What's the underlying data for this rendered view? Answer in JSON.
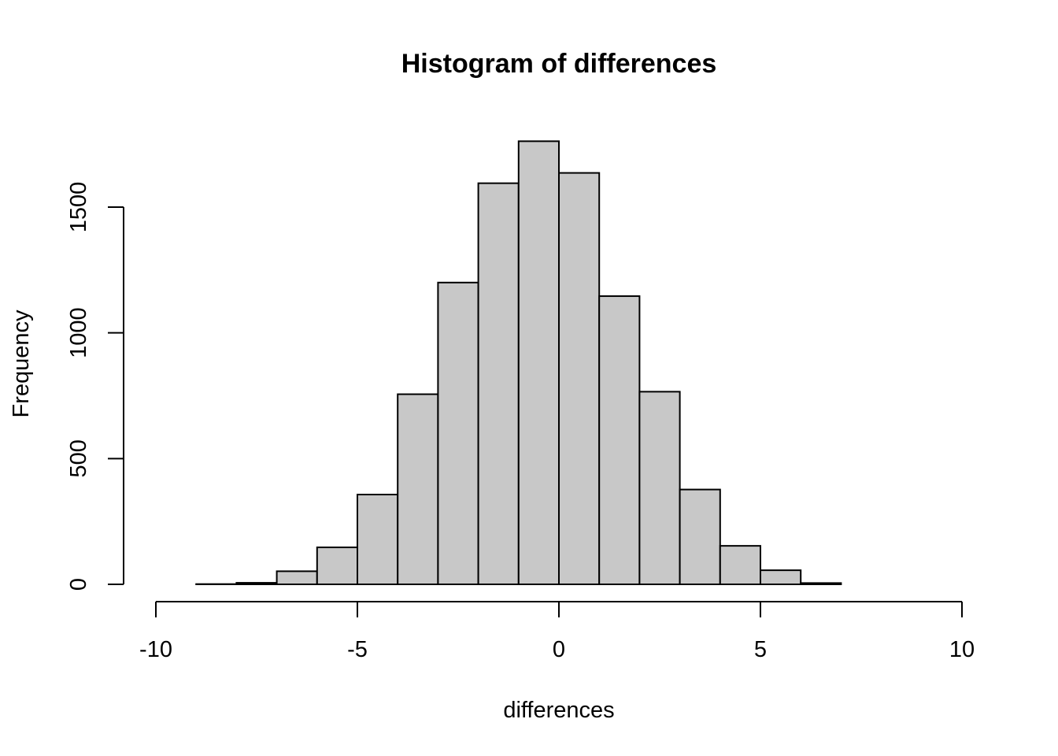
{
  "chart_data": {
    "type": "bar",
    "title": "Histogram of differences",
    "xlabel": "differences",
    "ylabel": "Frequency",
    "x_ticks": [
      -10,
      -5,
      0,
      5,
      10
    ],
    "x_tick_labels": [
      "-10",
      "-5",
      "0",
      "5",
      "10"
    ],
    "y_ticks": [
      0,
      500,
      1000,
      1500
    ],
    "y_tick_labels": [
      "0",
      "500",
      "1000",
      "1500"
    ],
    "xlim": [
      -10,
      10
    ],
    "ylim": [
      0,
      1500
    ],
    "bin_edges": [
      -10,
      -9,
      -8,
      -7,
      -6,
      -5,
      -4,
      -3,
      -2,
      -1,
      0,
      1,
      2,
      3,
      4,
      5,
      6,
      7,
      8,
      9,
      10
    ],
    "values": [
      0,
      1,
      6,
      52,
      147,
      357,
      756,
      1200,
      1595,
      1762,
      1636,
      1146,
      766,
      377,
      153,
      56,
      5,
      0,
      0,
      0
    ],
    "fill_color": "#c8c8c8",
    "edge_color": "#000000",
    "grid": false
  }
}
